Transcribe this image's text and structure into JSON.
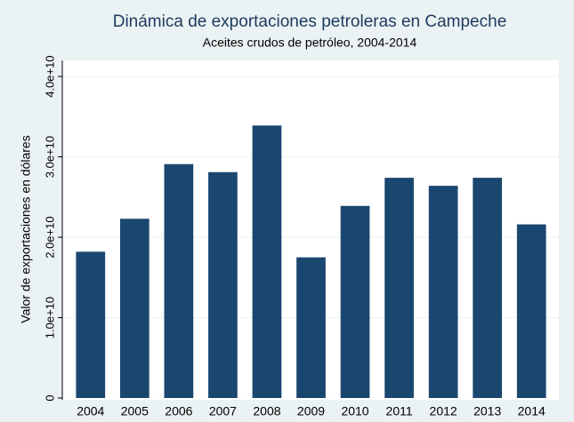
{
  "chart_data": {
    "type": "bar",
    "title": "Dinámica de exportaciones petroleras en Campeche",
    "subtitle": "Aceites crudos de petróleo, 2004-2014",
    "y_label": "Valor de exportaciones en dólares",
    "categories": [
      "2004",
      "2005",
      "2006",
      "2007",
      "2008",
      "2009",
      "2010",
      "2011",
      "2012",
      "2013",
      "2014"
    ],
    "values": [
      18200000000,
      22300000000,
      29100000000,
      28100000000,
      33900000000,
      17500000000,
      23900000000,
      27400000000,
      26400000000,
      27400000000,
      21600000000
    ],
    "color": "#1a476f",
    "ylim": [
      0,
      42000000000
    ],
    "yticks": [
      0,
      {
        "value": 10000000000,
        "label": "1.0e+10"
      },
      {
        "value": 20000000000,
        "label": "2.0e+10"
      },
      {
        "value": 30000000000,
        "label": "3.0e+10"
      },
      {
        "value": 40000000000,
        "label": "4.0e+10"
      }
    ],
    "grid": true
  }
}
